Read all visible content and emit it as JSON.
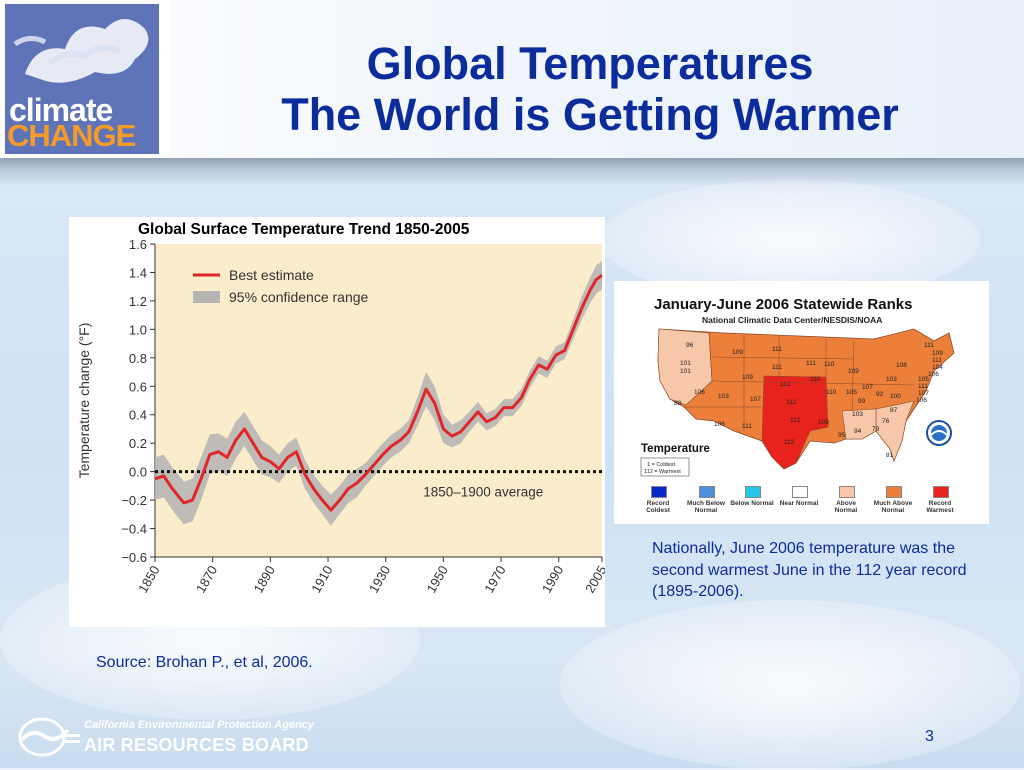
{
  "slide": {
    "title_line1": "Global Temperatures",
    "title_line2": "The World is Getting Warmer",
    "page_number": "3",
    "source": "Source: Brohan P., et al, 2006.",
    "note": "Nationally, June 2006 temperature was the second warmest June in the 112 year record (1895-2006)."
  },
  "logo": {
    "word1": "climate",
    "word2": "CHANGE"
  },
  "footer": {
    "agency": "California Environmental Protection Agency",
    "board": "AIR RESOURCES BOARD"
  },
  "colors": {
    "title": "#0d2c9c",
    "line": "#e0262a",
    "band": "#b4b4b4",
    "plot_bg": "#fbeccb",
    "logo_bg": "#5f74b8",
    "logo_orange": "#f49b2a"
  },
  "chart_data": {
    "type": "line",
    "title": "Global Surface Temperature Trend 1850-2005",
    "xlabel": "",
    "ylabel": "Temperature change (°F)",
    "xlim": [
      1850,
      2005
    ],
    "ylim": [
      -0.6,
      1.6
    ],
    "x_ticks": [
      "1850",
      "1870",
      "1890",
      "1910",
      "1930",
      "1950",
      "1970",
      "1990",
      "2005"
    ],
    "y_ticks": [
      "1.6",
      "1.4",
      "1.2",
      "1.0",
      "0.8",
      "0.6",
      "0.4",
      "0.2",
      "0.0",
      "−0.2",
      "−0.4",
      "−0.6"
    ],
    "legend": [
      "Best estimate",
      "95% confidence range"
    ],
    "baseline_label": "1850–1900 average",
    "baseline_value": 0.0,
    "series": [
      {
        "name": "Best estimate",
        "x": [
          1850,
          1853,
          1856,
          1860,
          1863,
          1866,
          1869,
          1872,
          1875,
          1878,
          1881,
          1884,
          1887,
          1890,
          1893,
          1896,
          1899,
          1902,
          1905,
          1908,
          1911,
          1914,
          1917,
          1920,
          1923,
          1926,
          1929,
          1932,
          1935,
          1938,
          1941,
          1944,
          1947,
          1950,
          1953,
          1956,
          1959,
          1962,
          1965,
          1968,
          1971,
          1974,
          1977,
          1980,
          1983,
          1986,
          1989,
          1992,
          1995,
          1998,
          2001,
          2003,
          2005
        ],
        "y": [
          -0.05,
          -0.03,
          -0.12,
          -0.22,
          -0.2,
          -0.05,
          0.12,
          0.14,
          0.1,
          0.22,
          0.3,
          0.2,
          0.1,
          0.07,
          0.02,
          0.1,
          0.14,
          -0.02,
          -0.12,
          -0.2,
          -0.27,
          -0.2,
          -0.12,
          -0.08,
          -0.02,
          0.05,
          0.12,
          0.18,
          0.22,
          0.28,
          0.42,
          0.58,
          0.48,
          0.3,
          0.25,
          0.28,
          0.35,
          0.42,
          0.35,
          0.38,
          0.45,
          0.45,
          0.52,
          0.65,
          0.75,
          0.72,
          0.82,
          0.85,
          1.0,
          1.15,
          1.28,
          1.35,
          1.38
        ]
      },
      {
        "name": "95% confidence range",
        "lower": [
          -0.2,
          -0.18,
          -0.27,
          -0.37,
          -0.35,
          -0.2,
          -0.02,
          0.01,
          -0.03,
          0.09,
          0.18,
          0.08,
          -0.02,
          -0.04,
          -0.08,
          0.0,
          0.04,
          -0.12,
          -0.22,
          -0.3,
          -0.38,
          -0.3,
          -0.22,
          -0.18,
          -0.1,
          -0.03,
          0.04,
          0.1,
          0.14,
          0.2,
          0.32,
          0.46,
          0.36,
          0.2,
          0.17,
          0.2,
          0.28,
          0.35,
          0.29,
          0.32,
          0.39,
          0.39,
          0.46,
          0.59,
          0.69,
          0.66,
          0.76,
          0.79,
          0.93,
          1.07,
          1.19,
          1.25,
          1.28
        ],
        "upper": [
          0.1,
          0.12,
          0.03,
          -0.07,
          -0.05,
          0.1,
          0.26,
          0.27,
          0.23,
          0.35,
          0.42,
          0.32,
          0.22,
          0.18,
          0.12,
          0.2,
          0.24,
          0.08,
          -0.02,
          -0.1,
          -0.16,
          -0.1,
          -0.02,
          0.02,
          0.06,
          0.13,
          0.2,
          0.26,
          0.3,
          0.36,
          0.52,
          0.7,
          0.6,
          0.4,
          0.33,
          0.36,
          0.42,
          0.49,
          0.41,
          0.44,
          0.51,
          0.51,
          0.58,
          0.71,
          0.81,
          0.78,
          0.88,
          0.91,
          1.07,
          1.23,
          1.37,
          1.45,
          1.48
        ]
      }
    ]
  },
  "map": {
    "title": "January-June 2006 Statewide Ranks",
    "subtitle": "National Climatic Data Center/NESDIS/NOAA",
    "legend_title": "Temperature",
    "legend_box": [
      "1 = Coldest",
      "112 = Warmest"
    ],
    "categories": [
      {
        "label": "Record Coldest",
        "color": "#0a28c8"
      },
      {
        "label": "Much Below Normal",
        "color": "#4f8fe0"
      },
      {
        "label": "Below Normal",
        "color": "#25c6e6"
      },
      {
        "label": "Near Normal",
        "color": "#ffffff"
      },
      {
        "label": "Above Normal",
        "color": "#f6c7a8"
      },
      {
        "label": "Much Above Normal",
        "color": "#ec7f3a"
      },
      {
        "label": "Record Warmest",
        "color": "#e8221c"
      }
    ],
    "state_ranks": [
      "96",
      "101",
      "101",
      "88",
      "106",
      "103",
      "109",
      "111",
      "111",
      "110",
      "109",
      "107",
      "106",
      "111",
      "112",
      "112",
      "112",
      "112",
      "109",
      "110",
      "110",
      "111",
      "105",
      "107",
      "109",
      "99",
      "95",
      "94",
      "79",
      "103",
      "100",
      "92",
      "76",
      "108",
      "103",
      "81",
      "87",
      "111",
      "109",
      "111",
      "104",
      "106",
      "105",
      "111",
      "107",
      "106"
    ]
  }
}
